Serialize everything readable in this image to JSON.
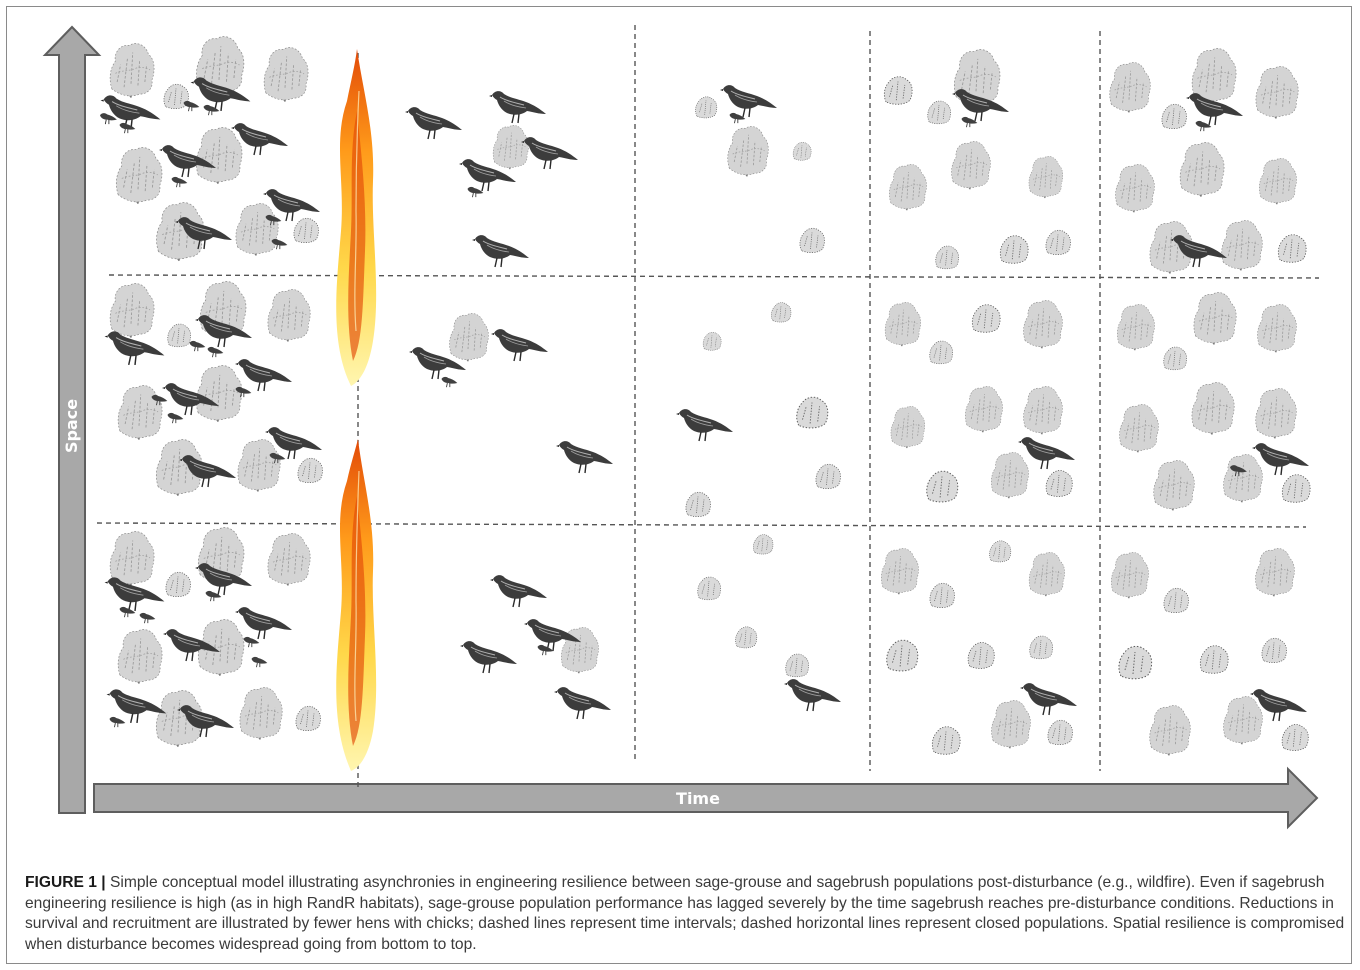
{
  "axes": {
    "x_label": "Time",
    "y_label": "Space"
  },
  "caption": {
    "label": "FIGURE 1 |",
    "text": "Simple conceptual model illustrating asynchronies in engineering resilience between sage-grouse and sagebrush populations post-disturbance (e.g., wildfire). Even if sagebrush engineering resilience is high (as in high RandR habitats), sage-grouse population performance has lagged severely by the time sagebrush reaches pre-disturbance conditions. Reductions in survival and recruitment are illustrated by fewer hens with chicks; dashed lines represent time intervals; dashed horizontal lines represent closed populations. Spatial resilience is compromised when disturbance becomes widespread going from bottom to top."
  },
  "colors": {
    "arrow_fill": "#a8a8a8",
    "arrow_stroke": "#5e5e5e",
    "dash": "#555555",
    "bird": "#3a3a3a",
    "shrub_dense": "#6a6a6a",
    "shrub_light": "#bdbdbd",
    "fire_outer": "#ffd84a",
    "fire_mid": "#ff9a1a",
    "fire_inner": "#e24a08"
  },
  "icons": {
    "space_axis": "up-arrow-icon",
    "time_axis": "right-arrow-icon",
    "bird": "sage-grouse-hen-icon",
    "chick": "sage-grouse-chick-icon",
    "shrub": "sagebrush-icon",
    "fire": "wildfire-icon"
  },
  "grid": {
    "time_intervals": 5,
    "populations": 3
  }
}
